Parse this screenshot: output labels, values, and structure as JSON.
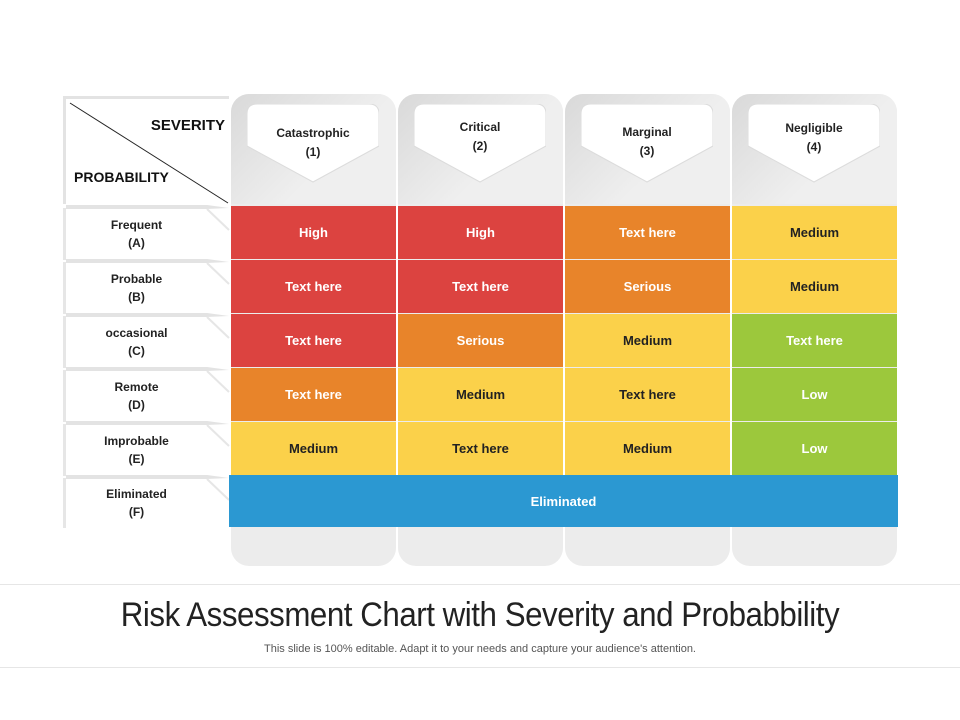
{
  "corner": {
    "severity": "SEVERITY",
    "probability": "PROBABILITY"
  },
  "columns": [
    {
      "name": "Catastrophic",
      "code": "(1)"
    },
    {
      "name": "Critical",
      "code": "(2)"
    },
    {
      "name": "Marginal",
      "code": "(3)"
    },
    {
      "name": "Negligible",
      "code": "(4)"
    }
  ],
  "rows": [
    {
      "name": "Frequent",
      "code": "(A)"
    },
    {
      "name": "Probable",
      "code": "(B)"
    },
    {
      "name": "occasional",
      "code": "(C)"
    },
    {
      "name": "Remote",
      "code": "(D)"
    },
    {
      "name": "Improbable",
      "code": "(E)"
    },
    {
      "name": "Eliminated",
      "code": "(F)"
    }
  ],
  "cells": [
    [
      "High",
      "High",
      "Text here",
      "Medium"
    ],
    [
      "Text here",
      "Text here",
      "Serious",
      "Medium"
    ],
    [
      "Text here",
      "Serious",
      "Medium",
      "Text here"
    ],
    [
      "Text here",
      "Medium",
      "Text here",
      "Low"
    ],
    [
      "Medium",
      "Text here",
      "Medium",
      "Low"
    ]
  ],
  "cell_colors": [
    [
      "red",
      "red",
      "orange",
      "yellow"
    ],
    [
      "red",
      "red",
      "orange",
      "yellow"
    ],
    [
      "red",
      "orange",
      "yellow",
      "green"
    ],
    [
      "orange",
      "yellow",
      "yellow",
      "green"
    ],
    [
      "yellow",
      "yellow",
      "yellow",
      "green"
    ]
  ],
  "eliminated_bar": "Eliminated",
  "colors": {
    "red": "#dc4340",
    "orange": "#e8842a",
    "yellow": "#fbd14a",
    "green": "#9cc83c",
    "blue": "#2b98d2"
  },
  "footer": {
    "title": "Risk Assessment Chart with Severity and Probabbility",
    "subtitle": "This slide is 100% editable. Adapt it to your needs and capture your audience's attention."
  }
}
